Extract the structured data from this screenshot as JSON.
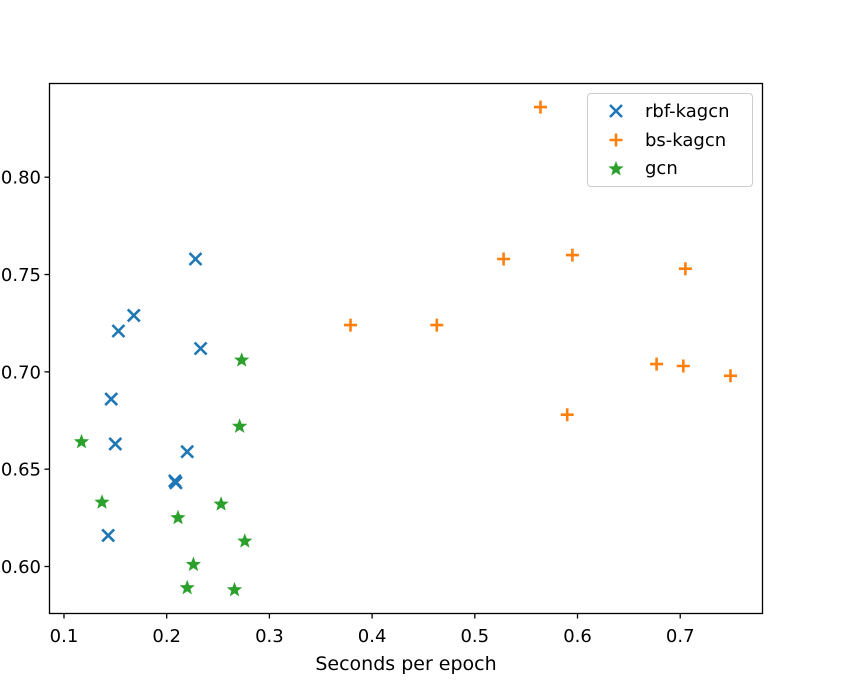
{
  "figure": {
    "background_color": "#ffffff",
    "spine_color": "#000000",
    "tick_label_color": "#000000"
  },
  "chart_data": {
    "type": "scatter",
    "title": "",
    "xlabel": "Seconds per epoch",
    "ylabel": "",
    "grid": false,
    "xlim": [
      0.0854,
      0.7806
    ],
    "ylim": [
      0.5756,
      0.8484
    ],
    "x_ticks": {
      "values": [
        0.1,
        0.2,
        0.3,
        0.4,
        0.5,
        0.6,
        0.7
      ],
      "labels": [
        "0.1",
        "0.2",
        "0.3",
        "0.4",
        "0.5",
        "0.6",
        "0.7"
      ]
    },
    "y_ticks": {
      "values": [
        0.6,
        0.65,
        0.7,
        0.75,
        0.8
      ],
      "labels": [
        "0.60",
        "0.65",
        "0.70",
        "0.75",
        "0.80"
      ]
    },
    "legend": {
      "position": "upper right"
    },
    "series": [
      {
        "name": "rbf-kagcn",
        "marker": "x",
        "color": "#1f77b4",
        "points": [
          [
            0.228,
            0.758
          ],
          [
            0.168,
            0.729
          ],
          [
            0.153,
            0.721
          ],
          [
            0.233,
            0.712
          ],
          [
            0.146,
            0.686
          ],
          [
            0.15,
            0.663
          ],
          [
            0.22,
            0.659
          ],
          [
            0.208,
            0.644
          ],
          [
            0.209,
            0.643
          ],
          [
            0.143,
            0.616
          ]
        ]
      },
      {
        "name": "bs-kagcn",
        "marker": "plus",
        "color": "#ff7f0e",
        "points": [
          [
            0.564,
            0.836
          ],
          [
            0.595,
            0.76
          ],
          [
            0.528,
            0.758
          ],
          [
            0.705,
            0.753
          ],
          [
            0.379,
            0.724
          ],
          [
            0.463,
            0.724
          ],
          [
            0.677,
            0.704
          ],
          [
            0.703,
            0.703
          ],
          [
            0.749,
            0.698
          ],
          [
            0.59,
            0.678
          ]
        ]
      },
      {
        "name": "gcn",
        "marker": "star",
        "color": "#2ca02c",
        "points": [
          [
            0.273,
            0.706
          ],
          [
            0.271,
            0.672
          ],
          [
            0.117,
            0.664
          ],
          [
            0.137,
            0.633
          ],
          [
            0.253,
            0.632
          ],
          [
            0.211,
            0.625
          ],
          [
            0.276,
            0.613
          ],
          [
            0.226,
            0.601
          ],
          [
            0.22,
            0.589
          ],
          [
            0.266,
            0.588
          ]
        ]
      }
    ]
  }
}
